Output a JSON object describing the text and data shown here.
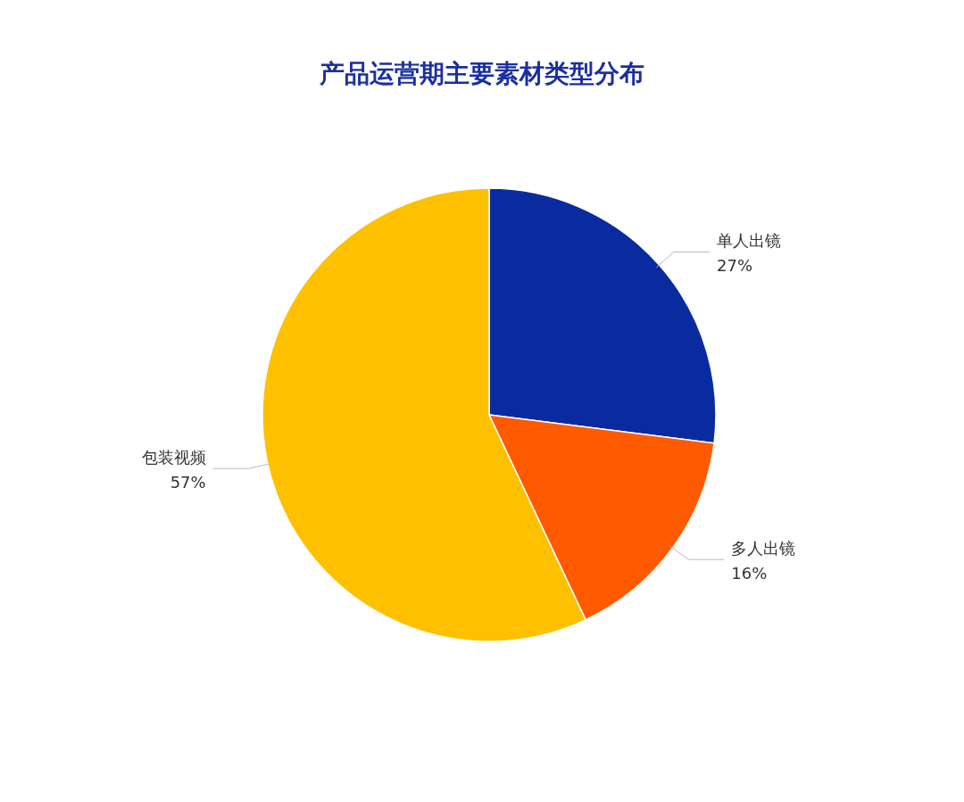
{
  "chart_data": {
    "type": "pie",
    "title": "产品运营期主要素材类型分布",
    "categories": [
      "单人出镜",
      "多人出镜",
      "包装视频"
    ],
    "values": [
      27,
      16,
      57
    ],
    "colors": [
      "#0a2ba0",
      "#ff5a00",
      "#ffc000"
    ],
    "value_labels": [
      "27%",
      "16%",
      "57%"
    ]
  }
}
